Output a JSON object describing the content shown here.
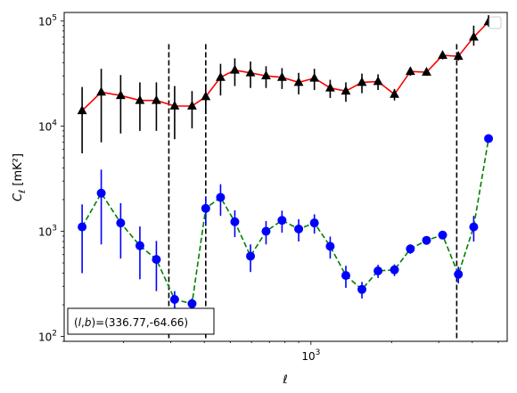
{
  "chart_data": {
    "type": "line",
    "xscale": "log",
    "yscale": "log",
    "xlim": [
      120,
      5400
    ],
    "ylim": [
      90,
      120000
    ],
    "xlabel": "ℓ",
    "ylabel": "C_ℓ [mK²]",
    "x_tick_labels": [
      {
        "value": 1000,
        "base": "10",
        "exp": "3"
      }
    ],
    "y_tick_labels": [
      {
        "value": 100,
        "base": "10",
        "exp": "2"
      },
      {
        "value": 1000,
        "base": "10",
        "exp": "3"
      },
      {
        "value": 10000,
        "base": "10",
        "exp": "4"
      },
      {
        "value": 100000,
        "base": "10",
        "exp": "5"
      }
    ],
    "legend": {
      "position": "top-right",
      "entries": []
    },
    "annotation": "(l,b)=(336.77,-64.66)",
    "vlines": [
      295,
      405,
      3500
    ],
    "series": [
      {
        "line_color": "#ff0000",
        "line_style": "solid",
        "marker": "triangle",
        "marker_color": "#000000",
        "errbar_color": "#000000",
        "x": [
          140,
          165,
          195,
          230,
          265,
          310,
          360,
          405,
          460,
          520,
          595,
          680,
          780,
          900,
          1030,
          1180,
          1350,
          1550,
          1780,
          2050,
          2350,
          2700,
          3100,
          3550,
          4050,
          4600
        ],
        "y": [
          14000,
          21000,
          19500,
          17500,
          17500,
          15500,
          15500,
          19000,
          29000,
          34000,
          32000,
          30000,
          29000,
          26000,
          28500,
          23000,
          21500,
          26000,
          26500,
          20000,
          33000,
          32500,
          47000,
          46000,
          70000,
          98000
        ],
        "err_low": [
          8500,
          14000,
          11000,
          8500,
          8500,
          8000,
          6000,
          6000,
          9500,
          10000,
          9000,
          7000,
          6500,
          6000,
          6500,
          4500,
          4500,
          5500,
          4500,
          2500,
          3000,
          2500,
          4000,
          4000,
          12000,
          10000
        ],
        "err_high": [
          9500,
          14000,
          11000,
          8500,
          8500,
          8500,
          6000,
          6000,
          10000,
          10000,
          9000,
          7000,
          6500,
          6000,
          6500,
          4500,
          4500,
          5500,
          4500,
          2500,
          3000,
          2500,
          4000,
          4000,
          20000,
          15000
        ]
      },
      {
        "line_color": "#008000",
        "line_style": "dashed",
        "marker": "circle",
        "marker_color": "#0000ff",
        "errbar_color": "#0000ff",
        "x": [
          140,
          165,
          195,
          230,
          265,
          310,
          360,
          405,
          460,
          520,
          595,
          680,
          780,
          900,
          1030,
          1180,
          1350,
          1550,
          1780,
          2050,
          2350,
          2700,
          3100,
          3550,
          4050,
          4600
        ],
        "y": [
          1100,
          2300,
          1200,
          730,
          540,
          225,
          205,
          1650,
          2100,
          1230,
          580,
          1000,
          1270,
          1050,
          1200,
          720,
          380,
          280,
          420,
          430,
          680,
          820,
          920,
          390,
          1100,
          7600
        ],
        "err_low": [
          700,
          1550,
          650,
          380,
          270,
          45,
          25,
          500,
          700,
          350,
          170,
          250,
          300,
          250,
          250,
          170,
          90,
          50,
          60,
          55,
          70,
          70,
          80,
          70,
          300,
          0
        ],
        "err_high": [
          700,
          1550,
          650,
          380,
          270,
          45,
          25,
          500,
          700,
          350,
          170,
          250,
          300,
          250,
          250,
          170,
          90,
          50,
          60,
          55,
          70,
          70,
          80,
          70,
          300,
          0
        ]
      }
    ]
  }
}
